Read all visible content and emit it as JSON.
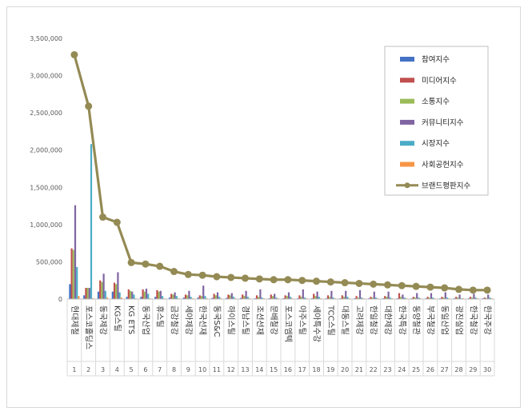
{
  "chart_data": {
    "type": "bar",
    "title": "",
    "xlabel": "",
    "ylabel": "",
    "ylim": [
      0,
      3500000
    ],
    "yticks": [
      "0",
      "500,000",
      "1,000,000",
      "1,500,000",
      "2,000,000",
      "2,500,000",
      "3,000,000",
      "3,500,000"
    ],
    "categories": [
      "현대제철",
      "포스코홀딩스",
      "동국제강",
      "KG스틸",
      "KG ETS",
      "동국산업",
      "휴스틸",
      "금강철강",
      "세아제강",
      "한국선재",
      "동국S&C",
      "하이스틸",
      "경남스틸",
      "조선선재",
      "문배철강",
      "포스코엠텍",
      "아주스틸",
      "세아특수강",
      "TCC스틸",
      "대동스틸",
      "고려제강",
      "한일철강",
      "대한제강",
      "한국특강",
      "동양철관",
      "부국철강",
      "동일산업",
      "광진실업",
      "한국철강",
      "한국주강"
    ],
    "index_labels": [
      "1",
      "2",
      "3",
      "4",
      "5",
      "6",
      "7",
      "8",
      "9",
      "10",
      "11",
      "12",
      "13",
      "14",
      "15",
      "16",
      "17",
      "18",
      "19",
      "20",
      "21",
      "22",
      "23",
      "24",
      "25",
      "26",
      "27",
      "28",
      "29",
      "30"
    ],
    "legend_position": "top-right",
    "grid": false,
    "series": [
      {
        "name": "참여지수",
        "kind": "bar",
        "color": "#4472C4",
        "values": [
          200000,
          50000,
          100000,
          100000,
          30000,
          30000,
          30000,
          20000,
          20000,
          20000,
          15000,
          15000,
          15000,
          10000,
          10000,
          10000,
          10000,
          10000,
          10000,
          10000,
          10000,
          10000,
          10000,
          10000,
          10000,
          10000,
          10000,
          10000,
          10000,
          10000
        ]
      },
      {
        "name": "미디어지수",
        "kind": "bar",
        "color": "#C0504D",
        "values": [
          680000,
          150000,
          250000,
          220000,
          130000,
          130000,
          120000,
          70000,
          60000,
          50000,
          70000,
          60000,
          60000,
          50000,
          60000,
          50000,
          50000,
          70000,
          50000,
          50000,
          40000,
          30000,
          40000,
          80000,
          30000,
          30000,
          30000,
          30000,
          30000,
          20000
        ]
      },
      {
        "name": "소통지수",
        "kind": "bar",
        "color": "#9BBB59",
        "values": [
          660000,
          150000,
          230000,
          200000,
          110000,
          100000,
          100000,
          60000,
          50000,
          40000,
          50000,
          50000,
          40000,
          30000,
          40000,
          40000,
          30000,
          40000,
          30000,
          30000,
          20000,
          20000,
          30000,
          30000,
          20000,
          20000,
          20000,
          20000,
          20000,
          15000
        ]
      },
      {
        "name": "커뮤니티지수",
        "kind": "bar",
        "color": "#8064A2",
        "values": [
          1260000,
          150000,
          340000,
          360000,
          100000,
          140000,
          110000,
          90000,
          110000,
          180000,
          90000,
          80000,
          110000,
          130000,
          70000,
          90000,
          130000,
          100000,
          110000,
          110000,
          120000,
          100000,
          100000,
          60000,
          80000,
          80000,
          90000,
          60000,
          70000,
          60000
        ]
      },
      {
        "name": "시장지수",
        "kind": "bar",
        "color": "#4BACC6",
        "values": [
          430000,
          2080000,
          110000,
          90000,
          60000,
          70000,
          40000,
          40000,
          30000,
          40000,
          30000,
          30000,
          30000,
          20000,
          20000,
          30000,
          20000,
          30000,
          20000,
          30000,
          20000,
          20000,
          20000,
          20000,
          20000,
          20000,
          20000,
          10000,
          20000,
          20000
        ]
      },
      {
        "name": "사회공헌지수",
        "kind": "bar",
        "color": "#F79646",
        "values": [
          40000,
          10000,
          20000,
          20000,
          10000,
          10000,
          10000,
          10000,
          10000,
          10000,
          10000,
          10000,
          10000,
          10000,
          10000,
          10000,
          10000,
          10000,
          10000,
          10000,
          10000,
          10000,
          10000,
          10000,
          10000,
          10000,
          10000,
          10000,
          10000,
          10000
        ]
      },
      {
        "name": "브랜드평판지수",
        "kind": "line",
        "color": "#948A54",
        "values": [
          3280000,
          2590000,
          1100000,
          1030000,
          490000,
          470000,
          440000,
          370000,
          330000,
          320000,
          300000,
          290000,
          280000,
          270000,
          260000,
          260000,
          250000,
          240000,
          230000,
          220000,
          210000,
          200000,
          190000,
          180000,
          170000,
          160000,
          150000,
          130000,
          120000,
          120000
        ]
      }
    ]
  }
}
